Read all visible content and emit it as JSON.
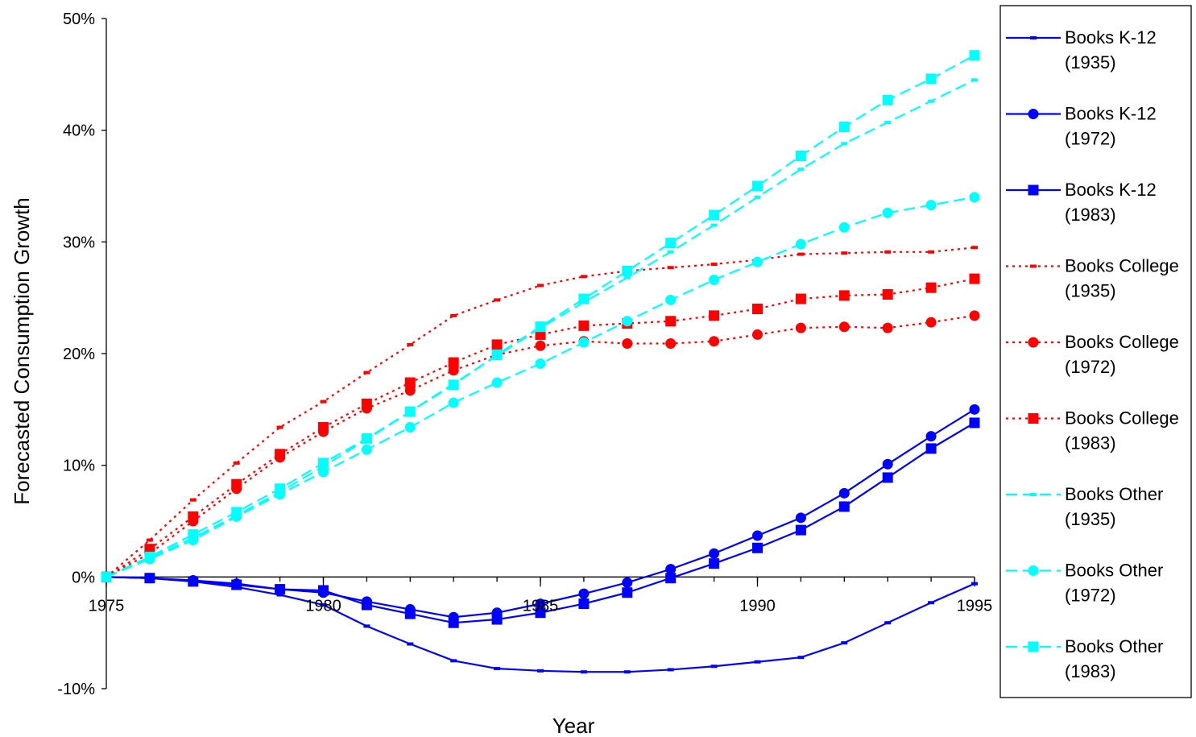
{
  "chart_data": {
    "type": "line",
    "title": "",
    "xlabel": "Year",
    "ylabel": "Forecasted Consumption Growth",
    "xlim": [
      1975,
      1995
    ],
    "ylim": [
      -10,
      50
    ],
    "x_ticks": [
      1975,
      1980,
      1985,
      1990,
      1995
    ],
    "y_ticks": [
      -10,
      0,
      10,
      20,
      30,
      40,
      50
    ],
    "y_tick_labels": [
      "-10%",
      "0%",
      "10%",
      "20%",
      "30%",
      "40%",
      "50%"
    ],
    "grid": false,
    "legend_position": "right",
    "x": [
      1975,
      1976,
      1977,
      1978,
      1979,
      1980,
      1981,
      1982,
      1983,
      1984,
      1985,
      1986,
      1987,
      1988,
      1989,
      1990,
      1991,
      1992,
      1993,
      1994,
      1995
    ],
    "series": [
      {
        "name": "Books K-12 (1935)",
        "color": "#0000FF",
        "dash": "solid",
        "marker": "dash",
        "values": [
          0,
          -0.1,
          -0.4,
          -0.9,
          -1.6,
          -2.5,
          -4.4,
          -6.0,
          -7.5,
          -8.2,
          -8.4,
          -8.5,
          -8.5,
          -8.3,
          -8.0,
          -7.6,
          -7.2,
          -5.9,
          -4.1,
          -2.3,
          -0.6
        ]
      },
      {
        "name": "Books K-12 (1972)",
        "color": "#0000FF",
        "dash": "solid",
        "marker": "circle",
        "values": [
          0,
          -0.1,
          -0.3,
          -0.6,
          -1.1,
          -1.4,
          -2.2,
          -2.9,
          -3.6,
          -3.2,
          -2.4,
          -1.5,
          -0.5,
          0.7,
          2.1,
          3.7,
          5.3,
          7.5,
          10.1,
          12.6,
          15.0
        ]
      },
      {
        "name": "Books K-12 (1983)",
        "color": "#0000FF",
        "dash": "solid",
        "marker": "square",
        "values": [
          0,
          -0.1,
          -0.4,
          -0.7,
          -1.1,
          -1.2,
          -2.5,
          -3.3,
          -4.1,
          -3.8,
          -3.2,
          -2.4,
          -1.4,
          -0.1,
          1.2,
          2.6,
          4.2,
          6.3,
          8.9,
          11.5,
          13.8
        ]
      },
      {
        "name": "Books College (1935)",
        "color": "#FF0000",
        "dash": "dot",
        "marker": "dash",
        "values": [
          0,
          3.3,
          6.9,
          10.2,
          13.4,
          15.7,
          18.3,
          20.8,
          23.4,
          24.8,
          26.1,
          26.9,
          27.4,
          27.7,
          28.0,
          28.4,
          28.9,
          29.0,
          29.1,
          29.1,
          29.5
        ]
      },
      {
        "name": "Books College (1972)",
        "color": "#FF0000",
        "dash": "dot",
        "marker": "circle",
        "values": [
          0,
          2.1,
          5.0,
          7.9,
          10.7,
          13.0,
          15.1,
          16.7,
          18.5,
          19.9,
          20.7,
          21.1,
          20.9,
          20.9,
          21.1,
          21.7,
          22.3,
          22.4,
          22.3,
          22.8,
          23.4
        ]
      },
      {
        "name": "Books College (1983)",
        "color": "#FF0000",
        "dash": "dot",
        "marker": "square",
        "values": [
          0,
          2.5,
          5.4,
          8.3,
          11.0,
          13.4,
          15.5,
          17.4,
          19.2,
          20.8,
          21.7,
          22.5,
          22.7,
          22.9,
          23.4,
          24.0,
          24.9,
          25.2,
          25.3,
          25.9,
          26.7
        ]
      },
      {
        "name": "Books Other (1935)",
        "color": "#00FFFF",
        "dash": "dash",
        "marker": "dash",
        "values": [
          0,
          1.7,
          3.5,
          5.5,
          7.6,
          9.9,
          12.3,
          14.8,
          17.3,
          19.8,
          22.3,
          24.6,
          26.8,
          29.1,
          31.5,
          34.0,
          36.5,
          38.8,
          40.7,
          42.6,
          44.5
        ]
      },
      {
        "name": "Books Other (1972)",
        "color": "#00FFFF",
        "dash": "dash",
        "marker": "circle",
        "values": [
          0,
          1.6,
          3.3,
          5.4,
          7.4,
          9.4,
          11.4,
          13.4,
          15.6,
          17.4,
          19.1,
          21.0,
          22.9,
          24.8,
          26.6,
          28.2,
          29.8,
          31.3,
          32.6,
          33.3,
          34.0
        ]
      },
      {
        "name": "Books Other (1983)",
        "color": "#00FFFF",
        "dash": "dash",
        "marker": "square",
        "values": [
          0,
          1.8,
          3.8,
          5.8,
          7.9,
          10.2,
          12.4,
          14.8,
          17.2,
          19.9,
          22.4,
          24.9,
          27.4,
          29.9,
          32.4,
          35.0,
          37.7,
          40.3,
          42.7,
          44.6,
          46.7
        ]
      }
    ],
    "legend": [
      {
        "line1": "Books K-12",
        "line2": "(1935)"
      },
      {
        "line1": "Books K-12",
        "line2": "(1972)"
      },
      {
        "line1": "Books K-12",
        "line2": "(1983)"
      },
      {
        "line1": "Books College",
        "line2": "(1935)"
      },
      {
        "line1": "Books College",
        "line2": "(1972)"
      },
      {
        "line1": "Books College",
        "line2": "(1983)"
      },
      {
        "line1": "Books Other",
        "line2": "(1935)"
      },
      {
        "line1": "Books Other",
        "line2": "(1972)"
      },
      {
        "line1": "Books Other",
        "line2": "(1983)"
      }
    ]
  }
}
